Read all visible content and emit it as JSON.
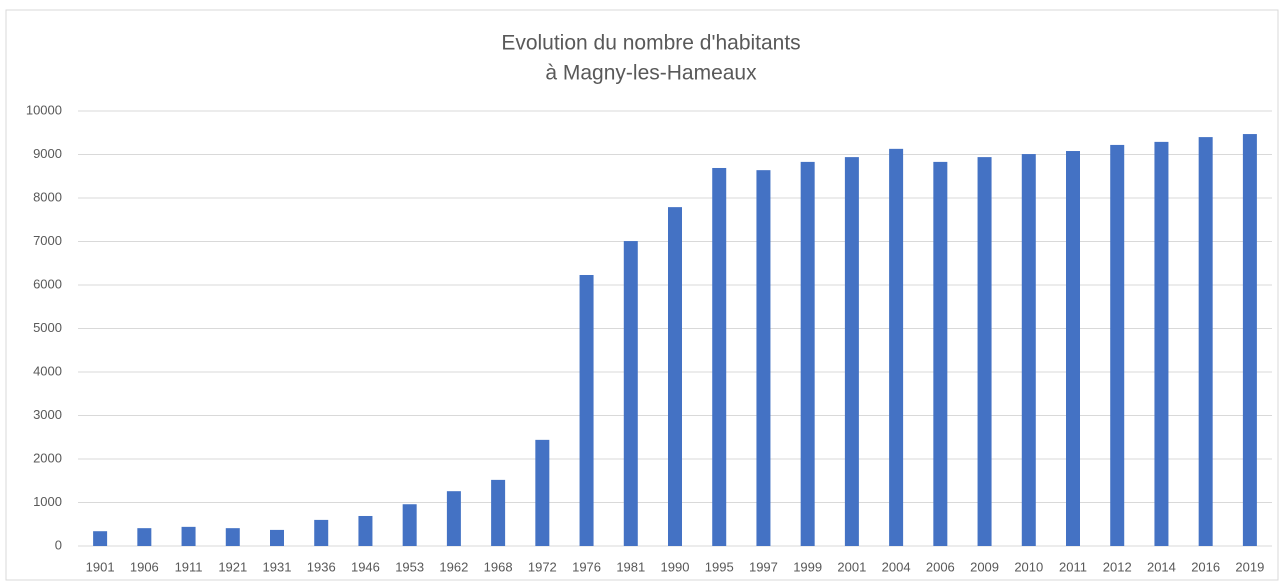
{
  "chart_data": {
    "type": "bar",
    "title": [
      "Evolution du nombre d'habitants",
      "à Magny-les-Hameaux"
    ],
    "categories": [
      "1901",
      "1906",
      "1911",
      "1921",
      "1931",
      "1936",
      "1946",
      "1953",
      "1962",
      "1968",
      "1972",
      "1976",
      "1981",
      "1990",
      "1995",
      "1997",
      "1999",
      "2001",
      "2004",
      "2006",
      "2009",
      "2010",
      "2011",
      "2012",
      "2014",
      "2016",
      "2019"
    ],
    "values": [
      340,
      410,
      440,
      410,
      370,
      600,
      690,
      960,
      1260,
      1520,
      2440,
      6230,
      7010,
      7790,
      8690,
      8640,
      8830,
      8940,
      9130,
      8830,
      8940,
      9010,
      9080,
      9220,
      9290,
      9400,
      9470
    ],
    "color": "#4472c4",
    "ylim": [
      0,
      10000
    ],
    "yticks": [
      0,
      1000,
      2000,
      3000,
      4000,
      5000,
      6000,
      7000,
      8000,
      9000,
      10000
    ],
    "grid": true
  }
}
